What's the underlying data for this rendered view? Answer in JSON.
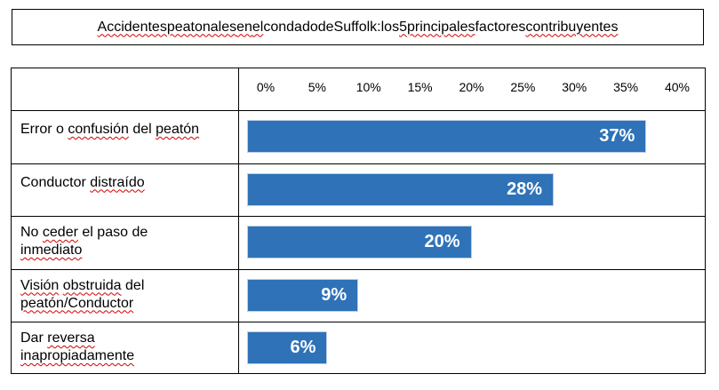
{
  "chart_data": {
    "type": "bar",
    "orientation": "horizontal",
    "title_words": [
      {
        "w": "Accidentes",
        "spell": true
      },
      {
        "w": "peatonales",
        "spell": true
      },
      {
        "w": "en",
        "spell": true
      },
      {
        "w": "el",
        "spell": true
      },
      {
        "w": "condado",
        "spell": false
      },
      {
        "w": "de",
        "spell": false
      },
      {
        "w": "Suffolk:",
        "spell": false
      },
      {
        "w": "los",
        "spell": false
      },
      {
        "w": "5",
        "spell": true
      },
      {
        "w": "principales",
        "spell": true
      },
      {
        "w": "factores",
        "spell": false
      },
      {
        "w": "contribuyentes",
        "spell": true
      }
    ],
    "xlim": [
      0,
      40
    ],
    "ticks": [
      "0%",
      "5%",
      "10%",
      "15%",
      "20%",
      "25%",
      "30%",
      "35%",
      "40%"
    ],
    "categories": [
      {
        "label": "Error o confusión del peatón",
        "lines": [
          [
            {
              "w": "Error",
              "spell": false
            },
            {
              "w": "o",
              "spell": false
            },
            {
              "w": "confusión",
              "spell": true
            },
            {
              "w": "del",
              "spell": false
            },
            {
              "w": "peatón",
              "spell": true
            }
          ]
        ],
        "value": 37,
        "data_label": "37%"
      },
      {
        "label": "Conductor distraído",
        "lines": [
          [
            {
              "w": "Conductor",
              "spell": false
            },
            {
              "w": "distraído",
              "spell": true
            }
          ]
        ],
        "value": 28,
        "data_label": "28%"
      },
      {
        "label": "No ceder el paso de inmediato",
        "lines": [
          [
            {
              "w": "No",
              "spell": false
            },
            {
              "w": "ceder",
              "spell": true
            },
            {
              "w": "el",
              "spell": false
            },
            {
              "w": "paso",
              "spell": false
            },
            {
              "w": "de",
              "spell": false
            }
          ],
          [
            {
              "w": "inmediato",
              "spell": true
            }
          ]
        ],
        "value": 20,
        "data_label": "20%"
      },
      {
        "label": "Visión obstruida del peatón/Conductor",
        "lines": [
          [
            {
              "w": "Visión",
              "spell": true
            },
            {
              "w": "obstruida",
              "spell": true
            },
            {
              "w": "del",
              "spell": false
            }
          ],
          [
            {
              "w": "peatón/Conductor",
              "spell": true
            }
          ]
        ],
        "value": 9,
        "data_label": "9%"
      },
      {
        "label": "Dar reversa inapropiadamente",
        "lines": [
          [
            {
              "w": "Dar",
              "spell": false
            },
            {
              "w": "reversa",
              "spell": true
            }
          ],
          [
            {
              "w": "inapropiadamente",
              "spell": true
            }
          ]
        ],
        "value": 6,
        "data_label": "6%"
      }
    ],
    "bar_color": "#2f72b8",
    "grid": false,
    "legend": "none"
  }
}
